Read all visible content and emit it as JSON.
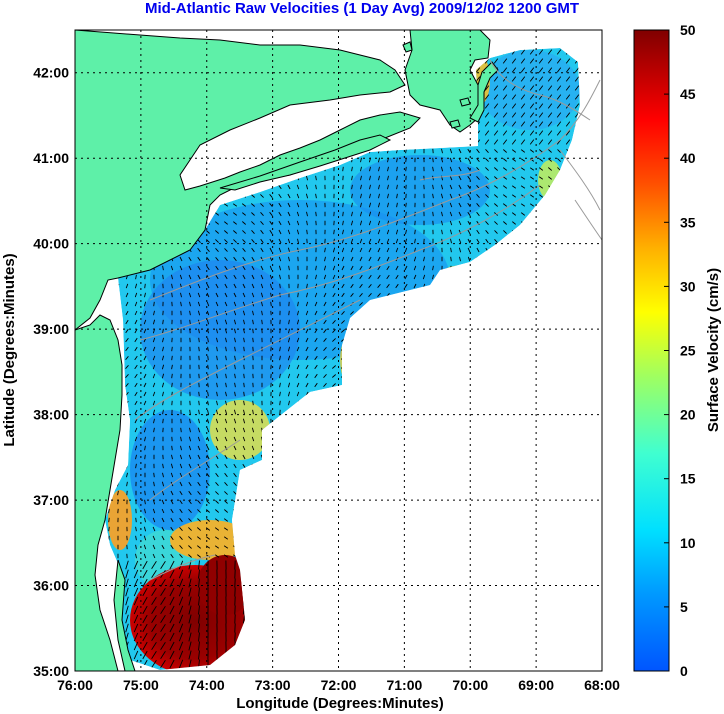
{
  "title": "Mid-Atlantic Raw Velocities (1 Day Avg) 2009/12/02 1200 GMT",
  "map": {
    "xlabel": "Longitude (Degrees:Minutes)",
    "ylabel": "Latitude (Degrees:Minutes)",
    "x_ticks": [
      "76:00",
      "75:00",
      "74:00",
      "73:00",
      "72:00",
      "71:00",
      "70:00",
      "69:00",
      "68:00"
    ],
    "y_ticks": [
      "42:00",
      "41:00",
      "40:00",
      "39:00",
      "38:00",
      "37:00",
      "36:00",
      "35:00"
    ],
    "lon_range": [
      -76,
      -68
    ],
    "lat_range": [
      35,
      42.5
    ],
    "colors": {
      "land": "#5ef0a8",
      "coast_line": "#000000",
      "bathymetry": "#9a9a9a",
      "grid": "#000000",
      "vector": "#000000"
    }
  },
  "colorbar": {
    "label": "Surface Velocity (cm/s)",
    "min": 0,
    "max": 50,
    "ticks": [
      "50",
      "45",
      "40",
      "35",
      "30",
      "25",
      "20",
      "15",
      "10",
      "5",
      "0"
    ],
    "colormap": "jet"
  }
}
